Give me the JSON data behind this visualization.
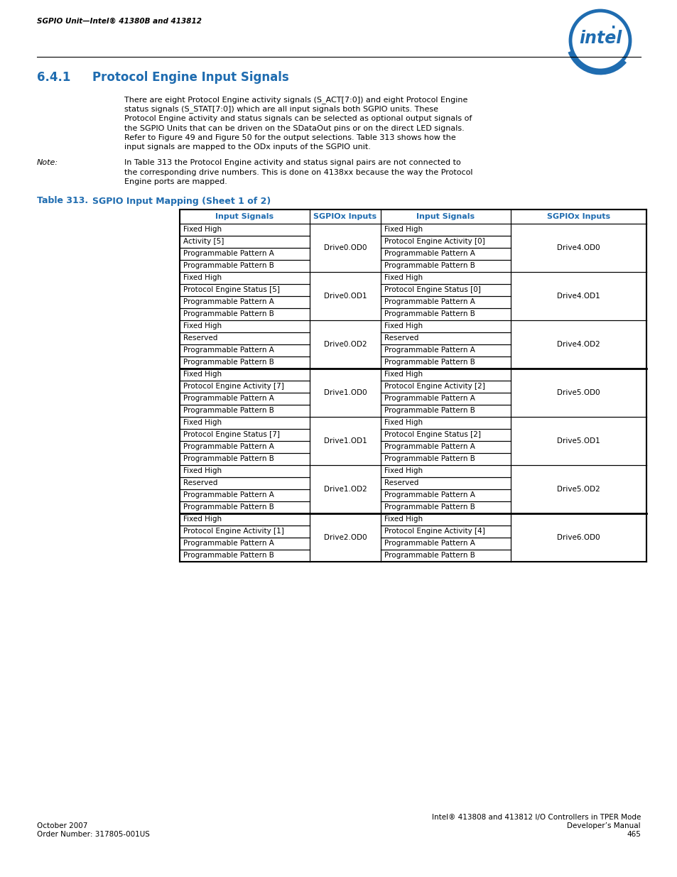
{
  "header_text": "SGPIO Unit—Intel® 41380B and 413812",
  "section_number": "6.4.1",
  "section_title": "Protocol Engine Input Signals",
  "body_text_lines": [
    "There are eight Protocol Engine activity signals (S_ACT[7:0]) and eight Protocol Engine",
    "status signals (S_STAT[7:0]) which are all input signals both SGPIO units. These",
    "Protocol Engine activity and status signals can be selected as optional output signals of",
    "the SGPIO Units that can be driven on the SDataOut pins or on the direct LED signals.",
    "Refer to Figure 49 and Figure 50 for the output selections. Table 313 shows how the",
    "input signals are mapped to the ODx inputs of the SGPIO unit."
  ],
  "note_label": "Note:",
  "note_text_lines": [
    "In Table 313 the Protocol Engine activity and status signal pairs are not connected to",
    "the corresponding drive numbers. This is done on 4138xx because the way the Protocol",
    "Engine ports are mapped."
  ],
  "table_label": "Table 313.",
  "table_title_text": "SGPIO Input Mapping (Sheet 1 of 2)",
  "col_headers": [
    "Input Signals",
    "SGPIOx Inputs",
    "Input Signals",
    "SGPIOx Inputs"
  ],
  "table_groups": [
    {
      "left_rows": [
        "Fixed High",
        "Activity [5]",
        "Programmable Pattern A",
        "Programmable Pattern B"
      ],
      "left_label": "Drive0.OD0",
      "right_rows": [
        "Fixed High",
        "Protocol Engine Activity [0]",
        "Programmable Pattern A",
        "Programmable Pattern B"
      ],
      "right_label": "Drive4.OD0"
    },
    {
      "left_rows": [
        "Fixed High",
        "Protocol Engine Status [5]",
        "Programmable Pattern A",
        "Programmable Pattern B"
      ],
      "left_label": "Drive0.OD1",
      "right_rows": [
        "Fixed High",
        "Protocol Engine Status [0]",
        "Programmable Pattern A",
        "Programmable Pattern B"
      ],
      "right_label": "Drive4.OD1"
    },
    {
      "left_rows": [
        "Fixed High",
        "Reserved",
        "Programmable Pattern A",
        "Programmable Pattern B"
      ],
      "left_label": "Drive0.OD2",
      "right_rows": [
        "Fixed High",
        "Reserved",
        "Programmable Pattern A",
        "Programmable Pattern B"
      ],
      "right_label": "Drive4.OD2"
    },
    {
      "left_rows": [
        "Fixed High",
        "Protocol Engine Activity [7]",
        "Programmable Pattern A",
        "Programmable Pattern B"
      ],
      "left_label": "Drive1.OD0",
      "right_rows": [
        "Fixed High",
        "Protocol Engine Activity [2]",
        "Programmable Pattern A",
        "Programmable Pattern B"
      ],
      "right_label": "Drive5.OD0"
    },
    {
      "left_rows": [
        "Fixed High",
        "Protocol Engine Status [7]",
        "Programmable Pattern A",
        "Programmable Pattern B"
      ],
      "left_label": "Drive1.OD1",
      "right_rows": [
        "Fixed High",
        "Protocol Engine Status [2]",
        "Programmable Pattern A",
        "Programmable Pattern B"
      ],
      "right_label": "Drive5.OD1"
    },
    {
      "left_rows": [
        "Fixed High",
        "Reserved",
        "Programmable Pattern A",
        "Programmable Pattern B"
      ],
      "left_label": "Drive1.OD2",
      "right_rows": [
        "Fixed High",
        "Reserved",
        "Programmable Pattern A",
        "Programmable Pattern B"
      ],
      "right_label": "Drive5.OD2"
    },
    {
      "left_rows": [
        "Fixed High",
        "Protocol Engine Activity [1]",
        "Programmable Pattern A",
        "Programmable Pattern B"
      ],
      "left_label": "Drive2.OD0",
      "right_rows": [
        "Fixed High",
        "Protocol Engine Activity [4]",
        "Programmable Pattern A",
        "Programmable Pattern B"
      ],
      "right_label": "Drive6.OD0"
    }
  ],
  "footer_left_line1": "October 2007",
  "footer_left_line2": "Order Number: 317805-001US",
  "footer_right_line1": "Intel® 413808 and 413812 I/O Controllers in TPER Mode",
  "footer_right_line2": "Developer’s Manual",
  "footer_right_line3": "465",
  "blue_color": "#1F6CB0",
  "black_color": "#000000"
}
